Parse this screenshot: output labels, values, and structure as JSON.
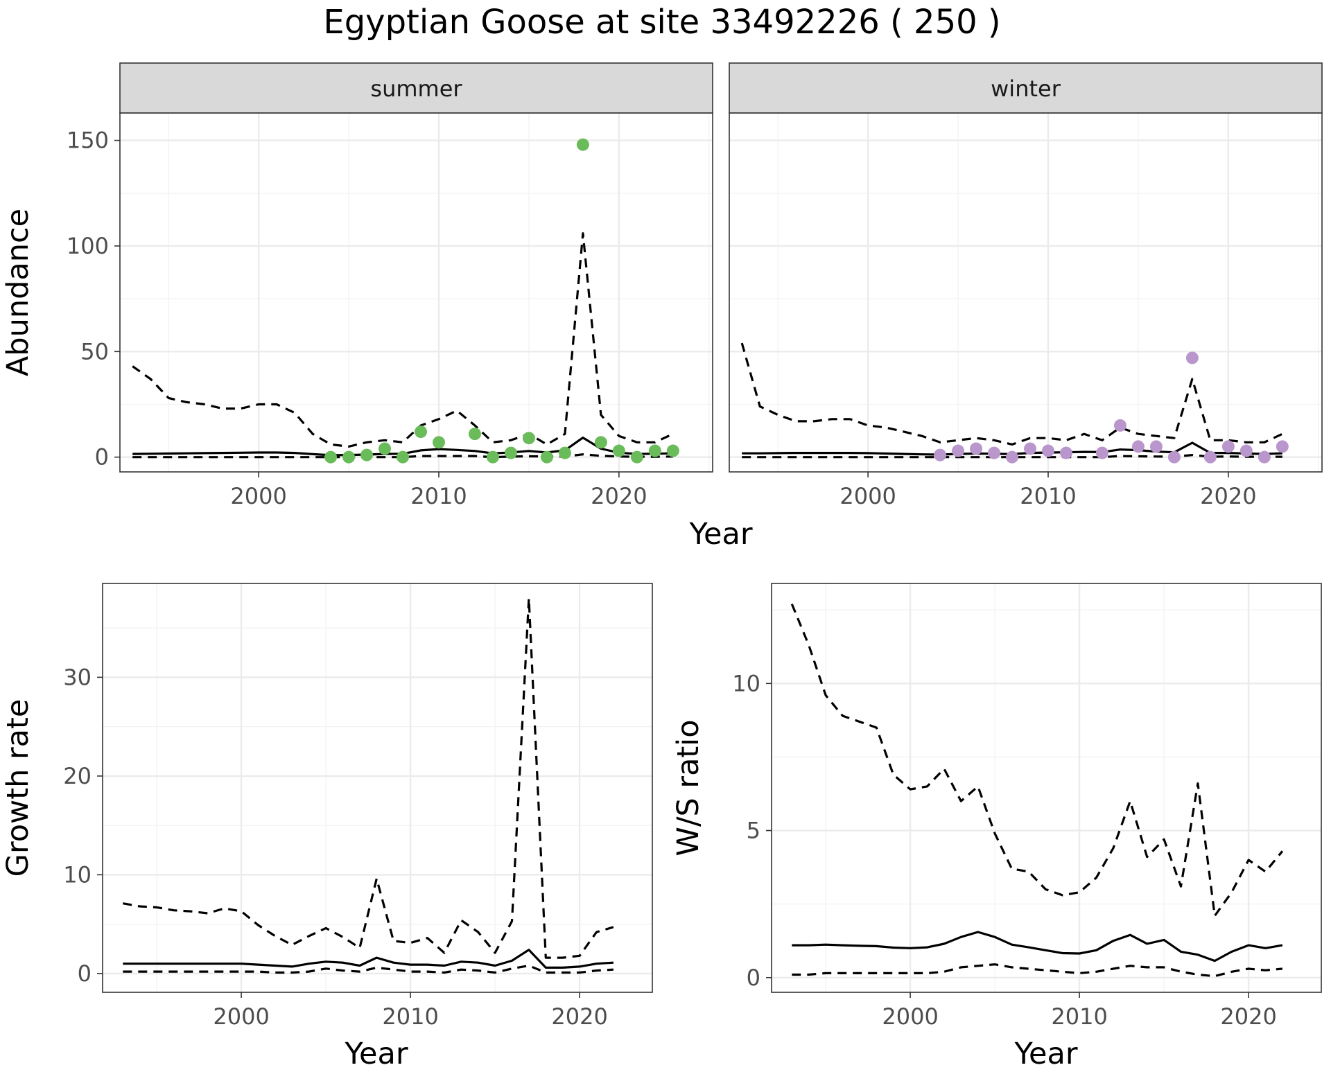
{
  "title": "Egyptian Goose at site 33492226 ( 250 )",
  "chart_data": [
    {
      "id": "abundance",
      "type": "line",
      "ylabel": "Abundance",
      "xlabel": "Year",
      "xlim": [
        1992.3,
        2025.2
      ],
      "ylim": [
        -7,
        163
      ],
      "xticks": [
        2000,
        2010,
        2020
      ],
      "yticks": [
        0,
        50,
        100,
        150
      ],
      "panels": [
        {
          "strip": "summer",
          "point_color": "#6abb59",
          "years": [
            1993,
            1994,
            1995,
            1996,
            1997,
            1998,
            1999,
            2000,
            2001,
            2002,
            2003,
            2004,
            2005,
            2006,
            2007,
            2008,
            2009,
            2010,
            2011,
            2012,
            2013,
            2014,
            2015,
            2016,
            2017,
            2018,
            2019,
            2020,
            2021,
            2022,
            2023
          ],
          "mid": [
            1.5,
            1.6,
            1.7,
            1.8,
            1.9,
            2.0,
            2.1,
            2.2,
            2.2,
            2.0,
            1.4,
            0.9,
            1.0,
            1.2,
            1.5,
            1.6,
            3.2,
            3.8,
            3.4,
            2.9,
            1.8,
            2.2,
            2.9,
            2.2,
            3.2,
            9.2,
            4.0,
            2.1,
            1.5,
            1.6,
            1.8
          ],
          "upper": [
            43,
            37,
            28,
            26,
            25,
            23,
            23,
            25,
            25,
            21,
            11,
            6,
            5,
            7,
            8,
            7,
            15,
            18,
            22,
            15,
            7,
            8,
            11,
            6,
            11,
            106,
            20,
            10,
            7,
            7,
            11
          ],
          "lower": [
            0,
            0,
            0,
            0,
            0,
            0,
            0,
            0,
            0,
            0,
            0,
            0,
            0,
            0,
            0,
            0,
            0.5,
            0.5,
            0.5,
            0.5,
            0,
            0.3,
            0.4,
            0.3,
            0.3,
            1.3,
            0.6,
            0.3,
            0.2,
            0.2,
            0.3
          ],
          "obs_years": [
            2004,
            2005,
            2006,
            2007,
            2008,
            2009,
            2010,
            2012,
            2013,
            2014,
            2015,
            2016,
            2017,
            2018,
            2019,
            2020,
            2021,
            2022,
            2023
          ],
          "obs_values": [
            0,
            0,
            1,
            4,
            0,
            12,
            7,
            11,
            0,
            2,
            9,
            0,
            2,
            148,
            7,
            3,
            0,
            3,
            3
          ]
        },
        {
          "strip": "winter",
          "point_color": "#b996cb",
          "years": [
            1993,
            1994,
            1995,
            1996,
            1997,
            1998,
            1999,
            2000,
            2001,
            2002,
            2003,
            2004,
            2005,
            2006,
            2007,
            2008,
            2009,
            2010,
            2011,
            2012,
            2013,
            2014,
            2015,
            2016,
            2017,
            2018,
            2019,
            2020,
            2021,
            2022,
            2023
          ],
          "mid": [
            1.8,
            1.8,
            1.9,
            2.0,
            2.0,
            2.0,
            2.0,
            1.9,
            1.7,
            1.5,
            1.3,
            1.2,
            1.5,
            1.7,
            1.6,
            1.4,
            2.0,
            2.2,
            2.3,
            2.5,
            2.4,
            3.6,
            3.3,
            2.6,
            2.3,
            6.8,
            2.0,
            2.0,
            1.7,
            1.5,
            1.8
          ],
          "upper": [
            54,
            24,
            20,
            17,
            17,
            18,
            18,
            15,
            14,
            12,
            10,
            7,
            8,
            9,
            8,
            6,
            9,
            9,
            8,
            11,
            8,
            14,
            11,
            10,
            9,
            37,
            8,
            8,
            7,
            7,
            11
          ],
          "lower": [
            0,
            0,
            0,
            0,
            0,
            0,
            0,
            0,
            0,
            0,
            0,
            0,
            0,
            0,
            0,
            0,
            0,
            0,
            0,
            0,
            0,
            0.5,
            0.4,
            0.3,
            0.2,
            1.0,
            0.2,
            0.3,
            0.2,
            0.2,
            0.2
          ],
          "obs_years": [
            2004,
            2005,
            2006,
            2007,
            2008,
            2009,
            2010,
            2011,
            2013,
            2014,
            2015,
            2016,
            2017,
            2018,
            2019,
            2020,
            2021,
            2022,
            2023
          ],
          "obs_values": [
            1,
            3,
            4,
            2,
            0,
            4,
            3,
            2,
            2,
            15,
            5,
            5,
            0,
            47,
            0,
            5,
            3,
            0,
            5
          ]
        }
      ]
    },
    {
      "id": "growth",
      "type": "line",
      "ylabel": "Growth rate",
      "xlabel": "Year",
      "xlim": [
        1991.8,
        2024.3
      ],
      "ylim": [
        -1.9,
        39.5
      ],
      "xticks": [
        2000,
        2010,
        2020
      ],
      "yticks": [
        0,
        10,
        20,
        30
      ],
      "years": [
        1993,
        1994,
        1995,
        1996,
        1997,
        1998,
        1999,
        2000,
        2001,
        2002,
        2003,
        2004,
        2005,
        2006,
        2007,
        2008,
        2009,
        2010,
        2011,
        2012,
        2013,
        2014,
        2015,
        2016,
        2017,
        2018,
        2019,
        2020,
        2021,
        2022
      ],
      "mid": [
        1.0,
        1.0,
        1.0,
        1.0,
        1.0,
        1.0,
        1.0,
        1.0,
        0.9,
        0.8,
        0.7,
        1.0,
        1.2,
        1.1,
        0.8,
        1.6,
        1.1,
        0.9,
        0.9,
        0.8,
        1.2,
        1.1,
        0.8,
        1.3,
        2.4,
        0.6,
        0.6,
        0.7,
        1.0,
        1.1
      ],
      "upper": [
        7.1,
        6.8,
        6.7,
        6.4,
        6.3,
        6.1,
        6.6,
        6.3,
        4.9,
        3.8,
        2.9,
        3.8,
        4.6,
        3.7,
        2.6,
        9.6,
        3.3,
        3.1,
        3.6,
        2.1,
        5.4,
        4.2,
        2.1,
        5.3,
        38.0,
        1.6,
        1.6,
        1.8,
        4.2,
        4.7
      ],
      "lower": [
        0.2,
        0.2,
        0.2,
        0.2,
        0.2,
        0.2,
        0.2,
        0.2,
        0.2,
        0.1,
        0.1,
        0.2,
        0.5,
        0.3,
        0.2,
        0.6,
        0.4,
        0.2,
        0.2,
        0.1,
        0.4,
        0.3,
        0.1,
        0.5,
        0.8,
        0.1,
        0.1,
        0.1,
        0.3,
        0.4
      ]
    },
    {
      "id": "ws",
      "type": "line",
      "ylabel": "W/S ratio",
      "xlabel": "Year",
      "xlim": [
        1991.8,
        2024.3
      ],
      "ylim": [
        -0.5,
        13.4
      ],
      "xticks": [
        2000,
        2010,
        2020
      ],
      "yticks": [
        0,
        5,
        10
      ],
      "years": [
        1993,
        1994,
        1995,
        1996,
        1997,
        1998,
        1999,
        2000,
        2001,
        2002,
        2003,
        2004,
        2005,
        2006,
        2007,
        2008,
        2009,
        2010,
        2011,
        2012,
        2013,
        2014,
        2015,
        2016,
        2017,
        2018,
        2019,
        2020,
        2021,
        2022
      ],
      "mid": [
        1.1,
        1.1,
        1.12,
        1.1,
        1.08,
        1.07,
        1.02,
        1.0,
        1.03,
        1.15,
        1.38,
        1.55,
        1.38,
        1.12,
        1.03,
        0.93,
        0.83,
        0.82,
        0.93,
        1.25,
        1.45,
        1.15,
        1.28,
        0.88,
        0.78,
        0.57,
        0.88,
        1.1,
        1.0,
        1.1
      ],
      "upper": [
        12.7,
        11.3,
        9.6,
        8.9,
        8.7,
        8.5,
        6.9,
        6.4,
        6.5,
        7.1,
        6.0,
        6.5,
        4.9,
        3.7,
        3.6,
        3.0,
        2.8,
        2.9,
        3.4,
        4.4,
        6.0,
        4.1,
        4.7,
        3.1,
        6.6,
        2.1,
        2.9,
        4.0,
        3.6,
        4.3
      ],
      "lower": [
        0.1,
        0.1,
        0.15,
        0.15,
        0.15,
        0.15,
        0.15,
        0.15,
        0.15,
        0.2,
        0.35,
        0.4,
        0.45,
        0.35,
        0.3,
        0.25,
        0.2,
        0.15,
        0.2,
        0.3,
        0.4,
        0.35,
        0.35,
        0.2,
        0.1,
        0.05,
        0.2,
        0.3,
        0.25,
        0.3
      ]
    }
  ]
}
